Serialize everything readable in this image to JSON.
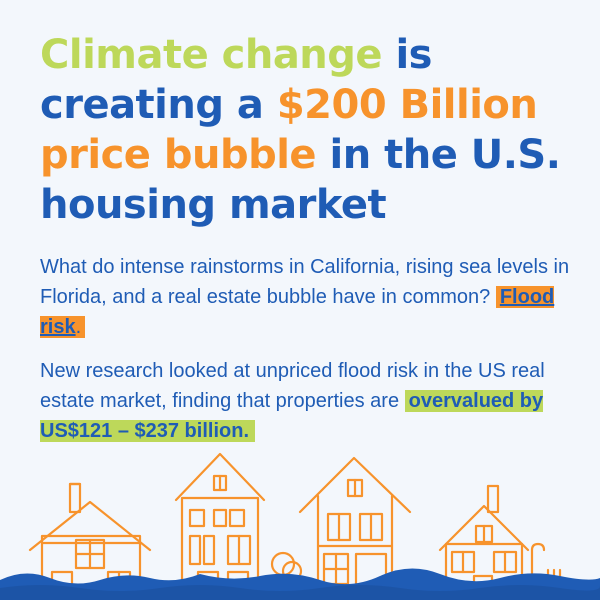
{
  "headline": {
    "part1": "Climate change",
    "part2": " is creating a ",
    "part3": "$200 Billion price bubble",
    "part4": " in the U.S. housing market"
  },
  "paragraph1": {
    "text": "What do intense rainstorms in California, rising sea levels in Florida, and a real estate bubble have in common? ",
    "highlight": "Flood risk",
    "suffix": "."
  },
  "paragraph2": {
    "text": "New research looked at unpriced flood risk in the US real estate market, finding that properties are ",
    "highlight": "overvalued by US$121 – $237 billion."
  },
  "colors": {
    "blue": "#1f5cb5",
    "green": "#bdd85a",
    "orange": "#f7932c",
    "background": "#f3f7fc",
    "water": "#1f5cb5"
  },
  "illustration": {
    "icons": [
      "house-icon",
      "townhouse-icon",
      "tree-icon",
      "water-waves-icon"
    ]
  }
}
